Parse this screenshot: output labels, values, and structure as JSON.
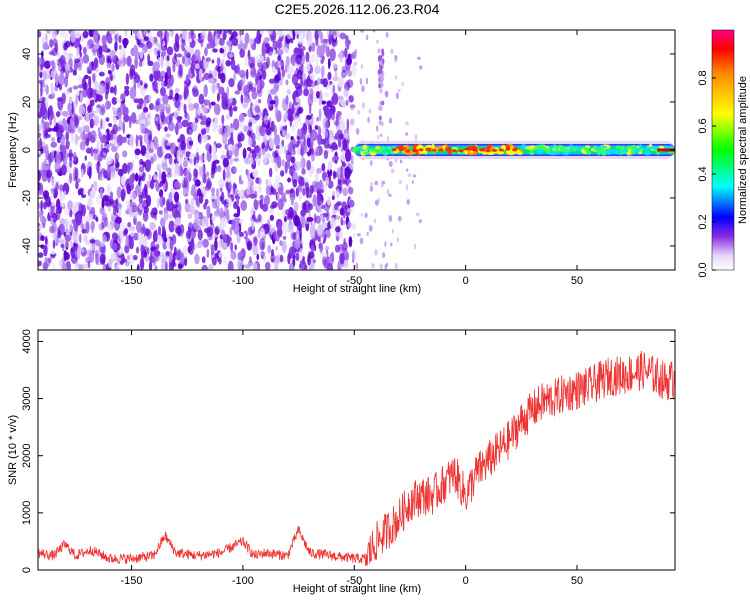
{
  "title": "C2E5.2026.112.06.23.R04",
  "chart_data": [
    {
      "type": "heatmap",
      "xlabel": "Height of straight line (km)",
      "ylabel": "Frequency (Hz)",
      "xlim": [
        -192,
        94
      ],
      "ylim": [
        -50,
        50
      ],
      "xticks": [
        -150,
        -100,
        -50,
        0,
        50
      ],
      "yticks": [
        -40,
        -20,
        0,
        20,
        40
      ],
      "noise_region_x": [
        -192,
        -50
      ],
      "signal": {
        "x_start": -50,
        "x_end": 94,
        "center_freq": 0,
        "peak_band_x": [
          -32,
          25
        ],
        "description_levels": "max normalized amplitude near x=-30..25 km at 0 Hz"
      },
      "colorbar": {
        "label": "Normalized spectral amplitude",
        "range": [
          0.0,
          1.0
        ],
        "ticks": [
          0.0,
          0.2,
          0.4,
          0.6,
          0.8
        ]
      }
    },
    {
      "type": "line",
      "xlabel": "Height of straight line (km)",
      "ylabel": "SNR (10 * v/v)",
      "xlim": [
        -192,
        94
      ],
      "ylim": [
        0,
        4200
      ],
      "xticks": [
        -150,
        -100,
        -50,
        0,
        50
      ],
      "yticks": [
        0,
        1000,
        2000,
        3000,
        4000
      ],
      "color": "#ee3333",
      "series": [
        {
          "x": [
            -192,
            -185,
            -180,
            -175,
            -172,
            -168,
            -160,
            -150,
            -140,
            -135,
            -130,
            -120,
            -110,
            -100,
            -95,
            -90,
            -80,
            -75,
            -70,
            -60,
            -50,
            -45,
            -40,
            -35,
            -30,
            -25,
            -20,
            -15,
            -10,
            -5,
            0,
            5,
            10,
            15,
            20,
            25,
            30,
            35,
            40,
            45,
            50,
            55,
            60,
            65,
            70,
            75,
            80,
            85,
            90,
            94
          ],
          "y": [
            300,
            250,
            450,
            250,
            300,
            350,
            200,
            200,
            250,
            600,
            300,
            250,
            300,
            500,
            250,
            300,
            250,
            700,
            300,
            250,
            200,
            200,
            500,
            700,
            900,
            1200,
            1300,
            1300,
            1500,
            1700,
            1300,
            1700,
            1900,
            2100,
            2300,
            2600,
            2800,
            2950,
            3000,
            3100,
            3150,
            3200,
            3300,
            3400,
            3400,
            3450,
            3500,
            3400,
            3300,
            3350
          ]
        }
      ]
    }
  ]
}
